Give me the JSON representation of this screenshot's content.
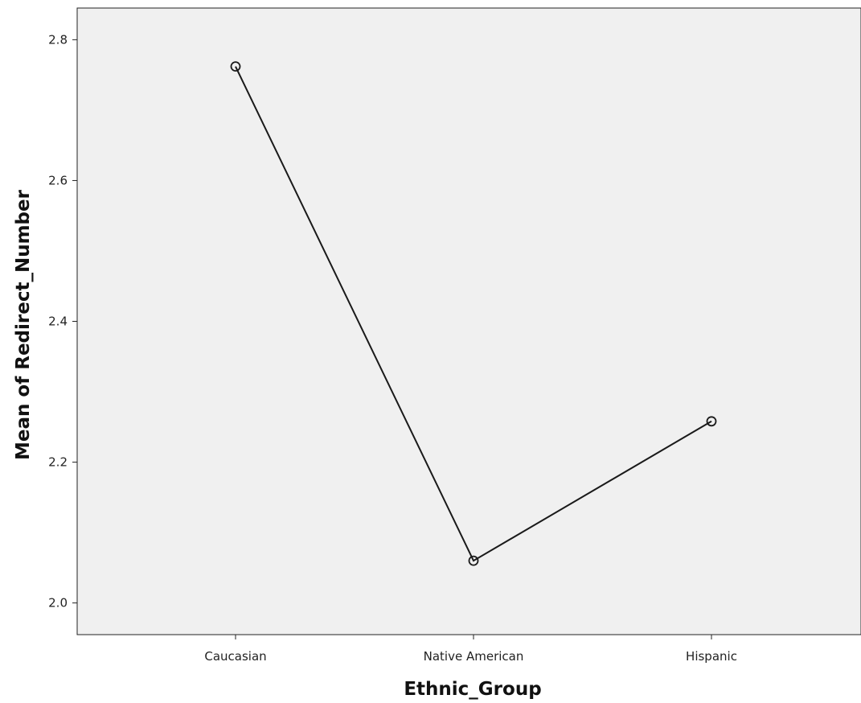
{
  "chart_data": {
    "type": "line",
    "title": "",
    "xlabel": "Ethnic_Group",
    "ylabel": "Mean of Redirect_Number",
    "categories": [
      "Caucasian",
      "Native American",
      "Hispanic"
    ],
    "series": [
      {
        "values": [
          2.762,
          2.06,
          2.258
        ]
      }
    ],
    "ylim": [
      1.955,
      2.845
    ],
    "yticks": [
      2.0,
      2.2,
      2.4,
      2.6,
      2.8
    ],
    "ytick_labels": [
      "2.0",
      "2.2",
      "2.4",
      "2.6",
      "2.8"
    ],
    "grid": false,
    "legend": "none",
    "marker": "open-circle",
    "colors": {
      "plot_background": "#f0f0f0",
      "line": "#1a1a1a",
      "axis": "#222222"
    }
  }
}
